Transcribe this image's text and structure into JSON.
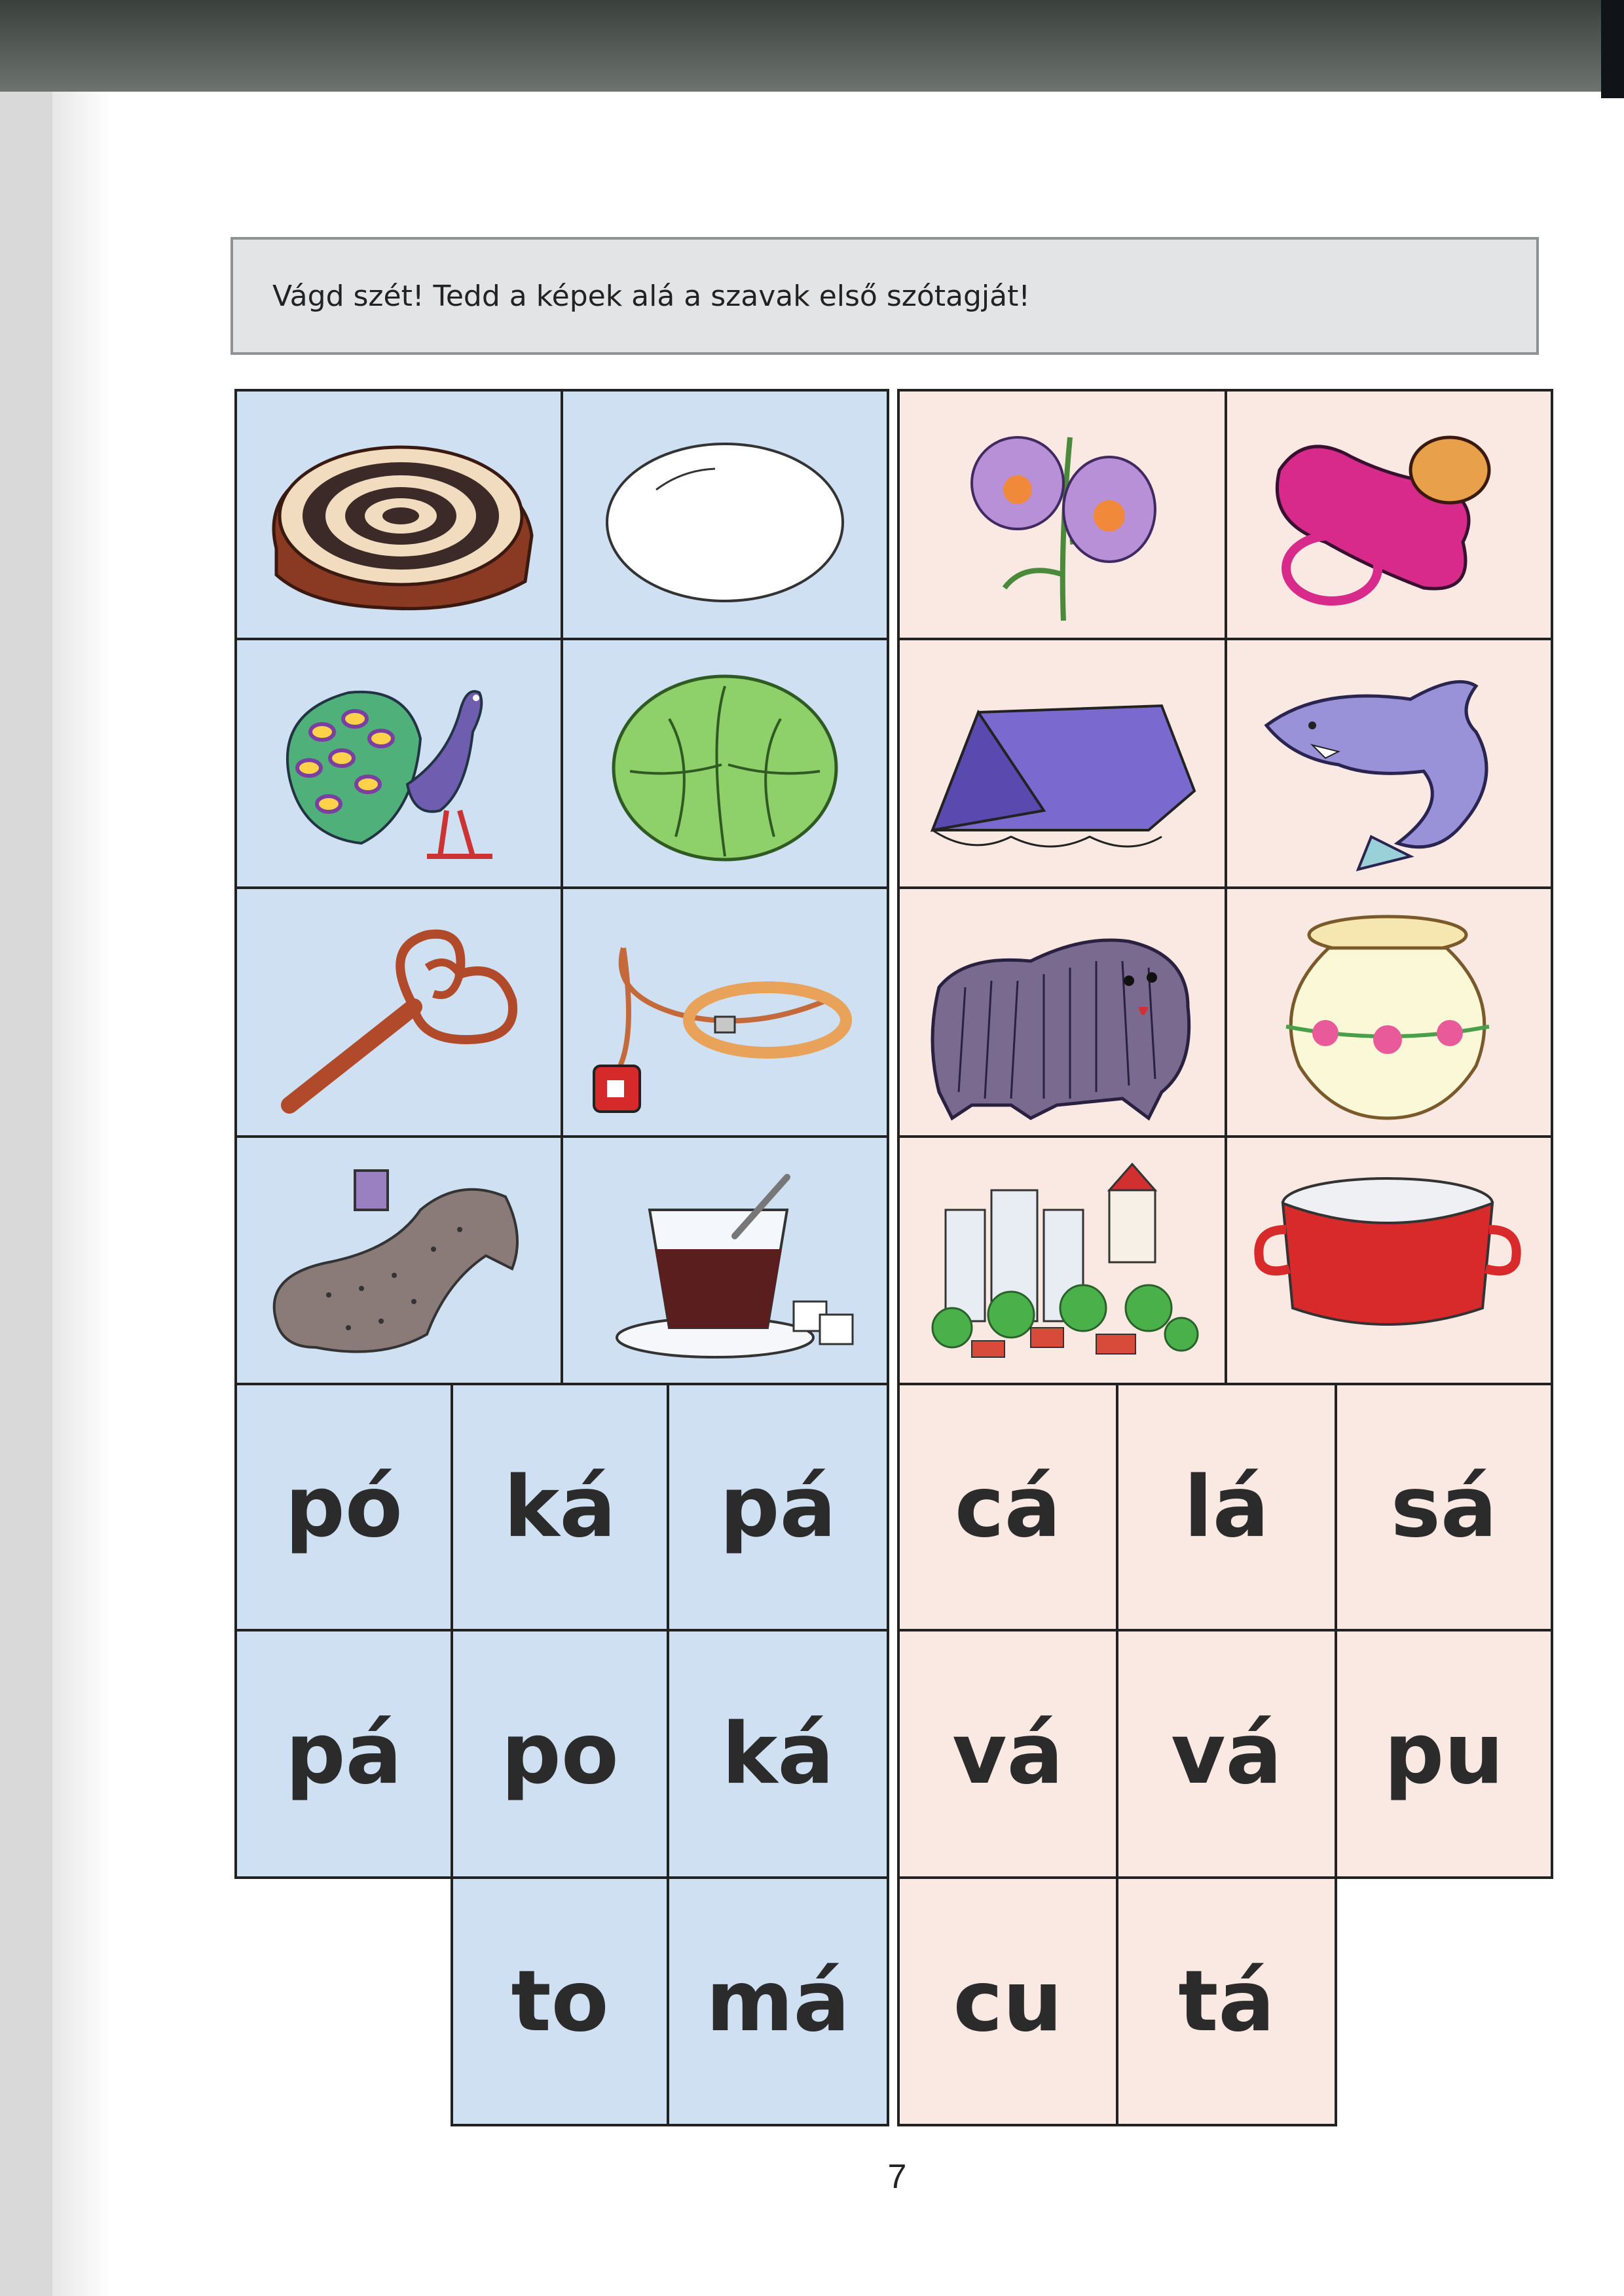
{
  "instruction": "Vágd szét! Tedd a képek alá a szavak első szótagját!",
  "pictures": {
    "blue": [
      "poppy-seed-roll",
      "egg",
      "peacock",
      "lettuce-head",
      "carpet-beater",
      "dog-leash",
      "scarf-on-bench",
      "glass-of-tea"
    ],
    "pink": [
      "snapdragon-flowers",
      "pacifier",
      "tent",
      "shark",
      "puli-dog",
      "vase",
      "town",
      "pot"
    ]
  },
  "syllables": {
    "blue": [
      [
        "pó",
        "ká",
        "pá"
      ],
      [
        "pá",
        "po",
        "ká"
      ],
      [
        "to",
        "má"
      ]
    ],
    "pink": [
      [
        "cá",
        "lá",
        "sá"
      ],
      [
        "vá",
        "vá",
        "pu"
      ],
      [
        "cu",
        "tá"
      ]
    ]
  },
  "page_number": "7",
  "colors": {
    "blue_panel": "#cfe0f3",
    "pink_panel": "#fae8e2",
    "instruction_box": "#e3e4e6"
  }
}
